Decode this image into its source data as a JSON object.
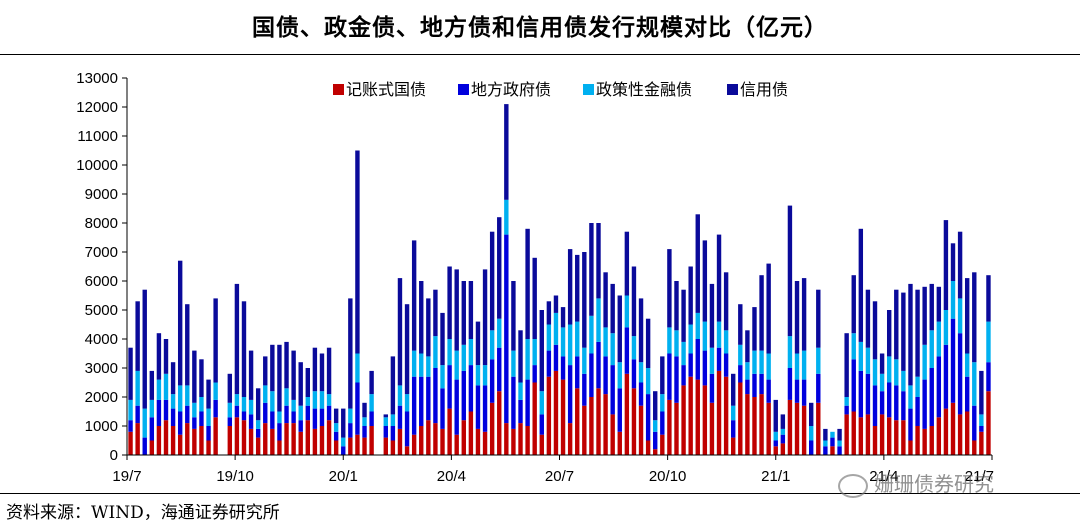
{
  "title": "国债、政金债、地方债和信用债发行规模对比（亿元）",
  "source": "资料来源：WIND，海通证券研究所",
  "watermark": "姗珊债券研究",
  "chart_data": {
    "type": "bar",
    "stacked": true,
    "title": "国债、政金债、地方债和信用债发行规模对比（亿元）",
    "xlabel": "",
    "ylabel": "",
    "ylim": [
      0,
      13000
    ],
    "yticks": [
      0,
      1000,
      2000,
      3000,
      4000,
      5000,
      6000,
      7000,
      8000,
      9000,
      10000,
      11000,
      12000,
      13000
    ],
    "xtick_labels": [
      "19/7",
      "19/10",
      "20/1",
      "20/4",
      "20/7",
      "20/10",
      "21/1",
      "21/4",
      "21/7"
    ],
    "legend_position": "top",
    "grid": false,
    "series": [
      {
        "name": "记账式国债",
        "color": "#C00000",
        "values": [
          800,
          1100,
          0,
          500,
          1000,
          1200,
          1000,
          700,
          1100,
          900,
          1000,
          500,
          1300,
          0,
          1000,
          1300,
          1200,
          900,
          600,
          1100,
          900,
          500,
          1100,
          1100,
          800,
          1200,
          900,
          1000,
          1200,
          500,
          0,
          600,
          700,
          600,
          1000,
          0,
          600,
          500,
          900,
          300,
          700,
          1000,
          1200,
          1100,
          900,
          1600,
          700,
          1200,
          1500,
          900,
          800,
          1800,
          2200,
          1100,
          900,
          1100,
          1000,
          2500,
          700,
          2700,
          2900,
          2600,
          1100,
          2300,
          1700,
          2000,
          2300,
          2100,
          1400,
          800,
          2800,
          2300,
          1700,
          500,
          200,
          700,
          1900,
          1800,
          2400,
          2700,
          2600,
          2400,
          1800,
          2900,
          2700,
          600,
          2500,
          2100,
          2000,
          2100,
          1800,
          300,
          400,
          1900,
          1800,
          1700,
          0,
          1800,
          0,
          300,
          0,
          1400,
          1500,
          1300,
          1400,
          1000,
          1400,
          1300,
          1200,
          1200,
          500,
          1000,
          900,
          1000,
          1300,
          1600,
          1800,
          1400,
          1500,
          500,
          800,
          2200
        ]
      },
      {
        "name": "地方政府债",
        "color": "#0000DD",
        "values": [
          400,
          600,
          600,
          800,
          900,
          700,
          600,
          800,
          600,
          400,
          500,
          500,
          600,
          0,
          300,
          400,
          300,
          500,
          300,
          700,
          600,
          600,
          600,
          400,
          400,
          500,
          700,
          600,
          500,
          300,
          300,
          500,
          1800,
          400,
          500,
          0,
          400,
          500,
          800,
          1200,
          2000,
          1700,
          1500,
          1900,
          1400,
          1500,
          1900,
          1700,
          1600,
          1500,
          1600,
          1500,
          1500,
          6500,
          1800,
          800,
          1600,
          600,
          700,
          900,
          900,
          800,
          2000,
          1100,
          1100,
          1500,
          1600,
          1300,
          1700,
          1500,
          1600,
          1000,
          800,
          1600,
          600,
          800,
          1600,
          1600,
          700,
          800,
          1400,
          1200,
          1000,
          800,
          800,
          600,
          600,
          500,
          800,
          700,
          800,
          200,
          300,
          1100,
          800,
          900,
          500,
          1000,
          300,
          300,
          300,
          300,
          1800,
          1600,
          1400,
          1400,
          800,
          1200,
          1200,
          1000,
          1100,
          1000,
          1700,
          2000,
          2100,
          2200,
          2900,
          2800,
          1200,
          1200,
          200,
          1000
        ]
      },
      {
        "name": "政策性金融债",
        "color": "#00B0F0",
        "values": [
          700,
          1200,
          1000,
          600,
          700,
          900,
          500,
          900,
          700,
          500,
          500,
          600,
          600,
          0,
          500,
          400,
          500,
          500,
          300,
          600,
          700,
          400,
          600,
          400,
          500,
          300,
          600,
          600,
          400,
          300,
          300,
          500,
          1000,
          300,
          600,
          0,
          300,
          400,
          700,
          600,
          900,
          800,
          700,
          1100,
          800,
          900,
          1000,
          900,
          900,
          700,
          700,
          1000,
          1000,
          1200,
          900,
          600,
          1400,
          900,
          800,
          900,
          1100,
          1000,
          1400,
          1200,
          900,
          1300,
          1500,
          1000,
          1100,
          900,
          1100,
          800,
          700,
          900,
          400,
          600,
          900,
          900,
          800,
          1000,
          900,
          1000,
          900,
          900,
          800,
          500,
          700,
          600,
          800,
          800,
          900,
          300,
          200,
          1100,
          900,
          1000,
          500,
          900,
          200,
          200,
          200,
          300,
          900,
          1000,
          900,
          900,
          600,
          900,
          900,
          700,
          800,
          700,
          1200,
          1300,
          1200,
          1200,
          1300,
          1200,
          800,
          1500,
          400,
          1400
        ]
      },
      {
        "name": "信用债",
        "color": "#0A0A9A",
        "values": [
          1800,
          2400,
          4100,
          1000,
          1600,
          1200,
          1100,
          4300,
          2800,
          1800,
          1300,
          1000,
          2900,
          0,
          1000,
          3800,
          3300,
          1700,
          1100,
          1000,
          1600,
          2300,
          1600,
          1700,
          1500,
          1000,
          1500,
          1300,
          1600,
          500,
          1000,
          3800,
          7000,
          500,
          800,
          0,
          100,
          2000,
          3700,
          3100,
          3800,
          2500,
          2000,
          1600,
          1800,
          2500,
          2800,
          2200,
          2000,
          1500,
          3300,
          3400,
          3500,
          3300,
          2400,
          1800,
          3800,
          2800,
          2800,
          800,
          600,
          700,
          2600,
          2300,
          3300,
          3200,
          2600,
          1900,
          1700,
          2300,
          2200,
          2400,
          2200,
          1700,
          1000,
          1300,
          2700,
          1700,
          1800,
          2000,
          3400,
          2800,
          2200,
          3000,
          2000,
          1100,
          1400,
          1100,
          1500,
          2600,
          3100,
          1100,
          500,
          4500,
          2500,
          2500,
          800,
          2000,
          400,
          0,
          400,
          2200,
          2000,
          3900,
          2000,
          2000,
          700,
          1600,
          2400,
          2700,
          3500,
          3000,
          2000,
          1600,
          1200,
          3100,
          1300,
          2300,
          2600,
          3100,
          1500,
          1600,
          1000
        ]
      }
    ]
  }
}
